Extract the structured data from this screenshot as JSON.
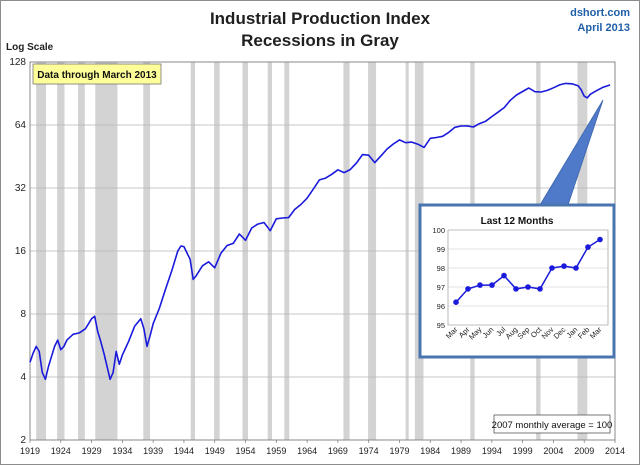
{
  "title_line1": "Industrial Production Index",
  "title_line2": "Recessions in Gray",
  "source_line1": "dshort.com",
  "source_line2": "April 2013",
  "y_scale_label": "Log Scale",
  "callout": "Data through March 2013",
  "footnote": "2007 monthly average = 100",
  "colors": {
    "series": "#1a1adc",
    "recession": "#d3d3d3",
    "callout_bg": "#ffff99",
    "inset_border": "#4a74ad",
    "arrow": "#4f7ac9"
  },
  "chart_data": [
    {
      "type": "line",
      "title": "Industrial Production Index",
      "subtitle": "Recessions in Gray",
      "ylabel": "Log Scale",
      "y_scale": "log",
      "ylim": [
        2,
        128
      ],
      "xlim": [
        1919,
        2014
      ],
      "x_ticks": [
        1919,
        1924,
        1929,
        1934,
        1939,
        1944,
        1949,
        1954,
        1959,
        1964,
        1969,
        1974,
        1979,
        1984,
        1989,
        1994,
        1999,
        2004,
        2009,
        2014
      ],
      "y_ticks": [
        2,
        4,
        8,
        16,
        32,
        64,
        128
      ],
      "grid": "horizontal",
      "recessions": [
        [
          1920.0,
          1921.6
        ],
        [
          1923.4,
          1924.6
        ],
        [
          1926.8,
          1927.9
        ],
        [
          1929.6,
          1933.2
        ],
        [
          1937.4,
          1938.5
        ],
        [
          1945.1,
          1945.8
        ],
        [
          1948.9,
          1949.8
        ],
        [
          1953.5,
          1954.4
        ],
        [
          1957.6,
          1958.3
        ],
        [
          1960.3,
          1961.1
        ],
        [
          1969.9,
          1970.9
        ],
        [
          1973.9,
          1975.2
        ],
        [
          1980.0,
          1980.5
        ],
        [
          1981.5,
          1982.9
        ],
        [
          1990.5,
          1991.2
        ],
        [
          2001.2,
          2001.9
        ],
        [
          2007.9,
          2009.5
        ]
      ],
      "series": [
        {
          "x": [
            1919.0,
            1919.5,
            1920.0,
            1920.5,
            1921.0,
            1921.5,
            1922.0,
            1923.0,
            1923.5,
            1924.0,
            1924.5,
            1925.0,
            1926.0,
            1927.0,
            1928.0,
            1929.0,
            1929.5,
            1930.0,
            1930.5,
            1931.0,
            1932.0,
            1932.5,
            1933.0,
            1933.5,
            1934.0,
            1935.0,
            1936.0,
            1937.0,
            1937.5,
            1938.0,
            1938.5,
            1939.0,
            1940.0,
            1941.0,
            1942.0,
            1943.0,
            1943.5,
            1944.0,
            1945.0,
            1945.5,
            1946.0,
            1947.0,
            1948.0,
            1949.0,
            1950.0,
            1951.0,
            1952.0,
            1953.0,
            1954.0,
            1955.0,
            1956.0,
            1957.0,
            1958.0,
            1959.0,
            1960.0,
            1961.0,
            1962.0,
            1963.0,
            1964.0,
            1965.0,
            1966.0,
            1967.0,
            1968.0,
            1969.0,
            1970.0,
            1971.0,
            1972.0,
            1973.0,
            1974.0,
            1975.0,
            1976.0,
            1977.0,
            1978.0,
            1979.0,
            1980.0,
            1981.0,
            1982.0,
            1983.0,
            1984.0,
            1985.0,
            1986.0,
            1987.0,
            1988.0,
            1989.0,
            1990.0,
            1991.0,
            1992.0,
            1993.0,
            1994.0,
            1995.0,
            1996.0,
            1997.0,
            1998.0,
            1999.0,
            2000.0,
            2001.0,
            2002.0,
            2003.0,
            2004.0,
            2005.0,
            2006.0,
            2007.0,
            2008.0,
            2008.5,
            2009.0,
            2009.5,
            2010.0,
            2011.0,
            2012.0,
            2013.0,
            2013.2
          ],
          "y": [
            4.7,
            5.2,
            5.6,
            5.3,
            4.2,
            3.9,
            4.5,
            5.6,
            6.0,
            5.4,
            5.6,
            6.0,
            6.4,
            6.5,
            6.8,
            7.6,
            7.8,
            6.6,
            5.9,
            5.2,
            3.9,
            4.2,
            5.3,
            4.6,
            5.1,
            5.9,
            7.0,
            7.6,
            6.8,
            5.6,
            6.3,
            7.2,
            8.5,
            10.5,
            12.8,
            16.0,
            16.9,
            16.8,
            14.6,
            11.7,
            12.2,
            13.6,
            14.2,
            13.3,
            15.6,
            17.0,
            17.4,
            19.3,
            18.0,
            20.6,
            21.5,
            21.9,
            20.0,
            22.8,
            23.0,
            23.1,
            25.3,
            26.7,
            28.6,
            31.6,
            35.0,
            35.7,
            37.2,
            39.1,
            37.9,
            39.2,
            42.1,
            46.2,
            45.9,
            42.3,
            45.6,
            49.2,
            51.9,
            54.3,
            52.7,
            53.0,
            51.8,
            50.0,
            55.3,
            55.8,
            56.5,
            59.0,
            62.4,
            63.3,
            63.4,
            62.6,
            65.0,
            66.7,
            70.2,
            73.7,
            77.5,
            84.0,
            89.0,
            92.5,
            96.2,
            92.3,
            92.0,
            93.6,
            96.4,
            99.5,
            101.2,
            100.7,
            98.5,
            94.5,
            88.0,
            86.2,
            89.8,
            93.3,
            96.8,
            98.9,
            99.6
          ]
        }
      ]
    },
    {
      "type": "line",
      "title": "Last 12 Months",
      "ylim": [
        95,
        100
      ],
      "y_ticks": [
        95,
        96,
        97,
        98,
        99,
        100
      ],
      "categories": [
        "Mar",
        "Apr",
        "May",
        "Jun",
        "Jul",
        "Aug",
        "Sep",
        "Oct",
        "Nov",
        "Dec",
        "Jan",
        "Feb",
        "Mar"
      ],
      "series": [
        {
          "values": [
            96.2,
            96.9,
            97.1,
            97.1,
            97.6,
            96.9,
            97.0,
            96.9,
            98.0,
            98.1,
            98.0,
            99.1,
            99.5
          ]
        }
      ]
    }
  ]
}
